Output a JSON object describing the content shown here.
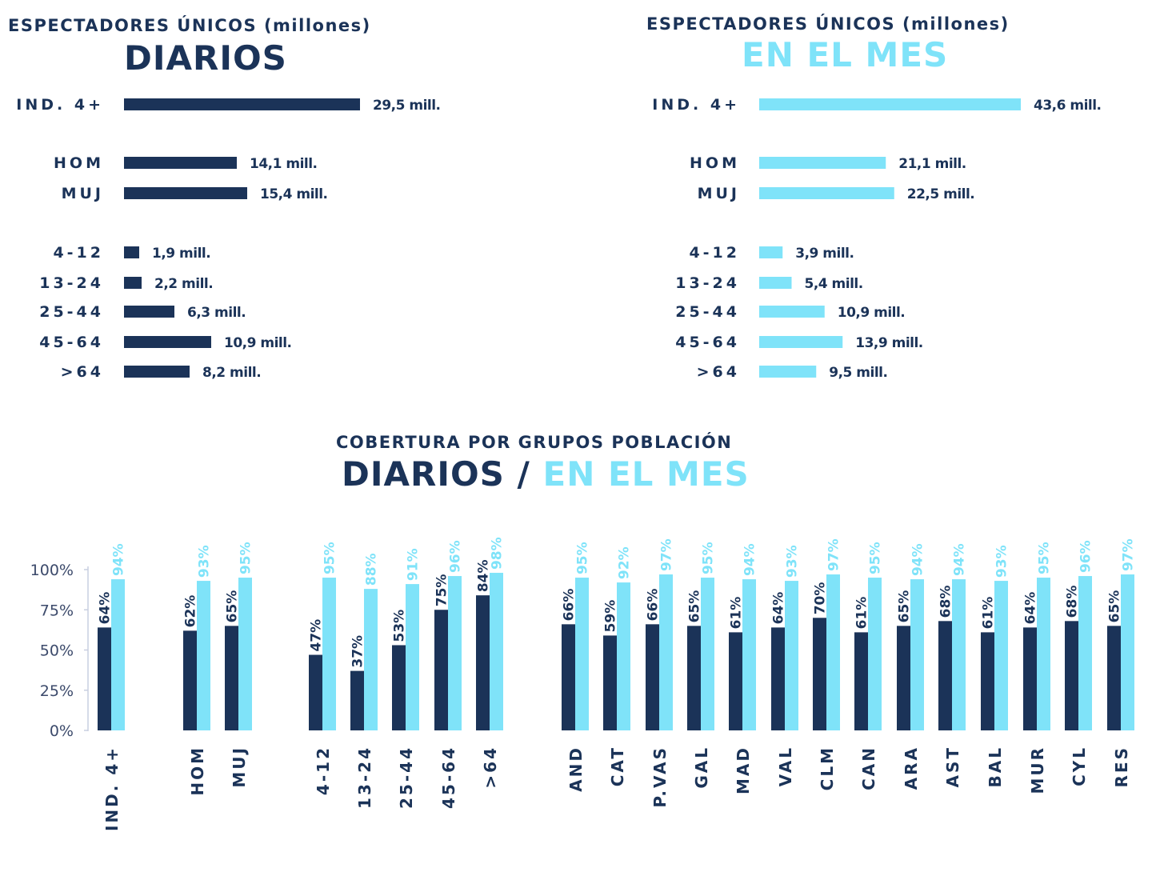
{
  "colors": {
    "diarios": "#1b3358",
    "mes": "#7fe3f9",
    "text": "#1b3358",
    "axis": "#3c4a6b"
  },
  "panels": [
    {
      "subtitle": "ESPECTADORES ÚNICOS (millones)",
      "title": "DIARIOS",
      "series": "diarios",
      "chart_data": {
        "type": "bar",
        "orientation": "horizontal",
        "categories": [
          "IND. 4+",
          "HOM",
          "MUJ",
          "4-12",
          "13-24",
          "25-44",
          "45-64",
          ">64"
        ],
        "values": [
          29.5,
          14.1,
          15.4,
          1.9,
          2.2,
          6.3,
          10.9,
          8.2
        ],
        "value_labels": [
          "29,5 mill.",
          "14,1 mill.",
          "15,4 mill.",
          "1,9 mill.",
          "2,2 mill.",
          "6,3 mill.",
          "10,9 mill.",
          "8,2 mill."
        ],
        "unit": "millones"
      }
    },
    {
      "subtitle": "ESPECTADORES ÚNICOS (millones)",
      "title": "EN EL MES",
      "series": "mes",
      "chart_data": {
        "type": "bar",
        "orientation": "horizontal",
        "categories": [
          "IND. 4+",
          "HOM",
          "MUJ",
          "4-12",
          "13-24",
          "25-44",
          "45-64",
          ">64"
        ],
        "values": [
          43.6,
          21.1,
          22.5,
          3.9,
          5.4,
          10.9,
          13.9,
          9.5
        ],
        "value_labels": [
          "43,6 mill.",
          "21,1 mill.",
          "22,5 mill.",
          "3,9 mill.",
          "5,4 mill.",
          "10,9 mill.",
          "13,9 mill.",
          "9,5 mill."
        ],
        "unit": "millones"
      }
    }
  ],
  "coverage": {
    "subtitle": "COBERTURA POR GRUPOS POBLACIÓN",
    "title_left": "DIARIOS",
    "title_sep": "/",
    "title_right": "EN EL MES"
  },
  "chart_data": {
    "type": "bar",
    "categories": [
      "IND. 4+",
      "HOM",
      "MUJ",
      "4-12",
      "13-24",
      "25-44",
      "45-64",
      ">64",
      "AND",
      "CAT",
      "P.VAS",
      "GAL",
      "MAD",
      "VAL",
      "CLM",
      "CAN",
      "ARA",
      "AST",
      "BAL",
      "MUR",
      "CYL",
      "RES"
    ],
    "series": [
      {
        "key": "diarios",
        "values": [
          64,
          62,
          65,
          47,
          37,
          53,
          75,
          84,
          66,
          59,
          66,
          65,
          61,
          64,
          70,
          61,
          65,
          68,
          61,
          64,
          68,
          65
        ]
      },
      {
        "key": "mes",
        "values": [
          94,
          93,
          95,
          95,
          88,
          91,
          96,
          98,
          95,
          92,
          97,
          95,
          94,
          93,
          97,
          95,
          94,
          94,
          93,
          95,
          96,
          97
        ]
      }
    ],
    "yticks": [
      "0%",
      "25%",
      "50%",
      "75%",
      "100%"
    ],
    "ylim": [
      0,
      100
    ],
    "value_suffix": "%",
    "grid": false
  }
}
